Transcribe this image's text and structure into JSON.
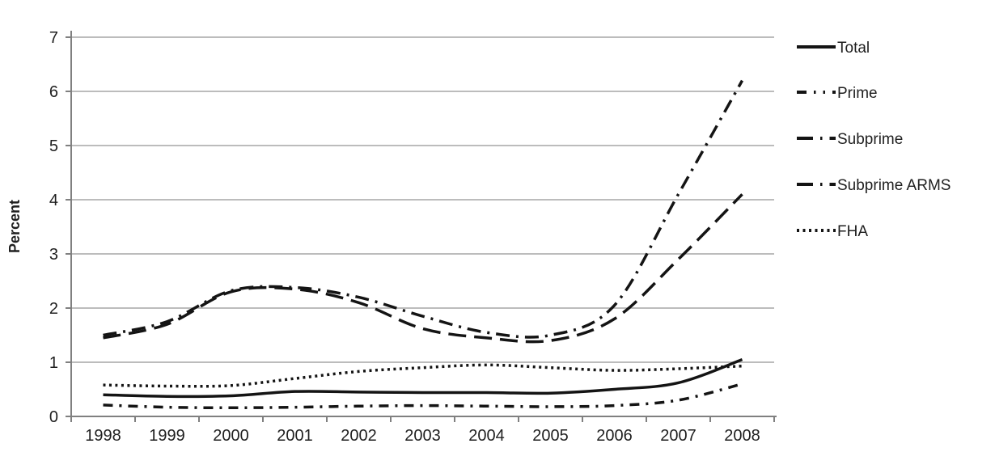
{
  "chart_data": {
    "type": "line",
    "title": "",
    "xlabel": "",
    "ylabel": "Percent",
    "x_categories": [
      "1998",
      "1999",
      "2000",
      "2001",
      "2002",
      "2003",
      "2004",
      "2005",
      "2006",
      "2007",
      "2008"
    ],
    "y_ticks": [
      "0",
      "1",
      "2",
      "3",
      "4",
      "5",
      "6",
      "7"
    ],
    "ylim": [
      0,
      7
    ],
    "grid": "horizontal-gray-lines",
    "legend_position": "right-outside",
    "series": [
      {
        "name": "Total",
        "style": "solid",
        "values": [
          0.4,
          0.37,
          0.38,
          0.46,
          0.45,
          0.44,
          0.44,
          0.43,
          0.5,
          0.62,
          1.05
        ]
      },
      {
        "name": "Prime",
        "style": "dash-dot",
        "values": [
          0.21,
          0.17,
          0.16,
          0.17,
          0.19,
          0.2,
          0.19,
          0.18,
          0.2,
          0.3,
          0.6
        ]
      },
      {
        "name": "Subprime",
        "style": "long-dash",
        "values": [
          1.45,
          1.7,
          2.3,
          2.35,
          2.1,
          1.62,
          1.45,
          1.4,
          1.8,
          2.9,
          4.1
        ]
      },
      {
        "name": "Subprime ARMS",
        "style": "long-dash-dot",
        "values": [
          1.5,
          1.75,
          2.32,
          2.38,
          2.2,
          1.85,
          1.55,
          1.5,
          2.05,
          4.1,
          6.2
        ]
      },
      {
        "name": "FHA",
        "style": "dotted",
        "values": [
          0.58,
          0.56,
          0.57,
          0.7,
          0.83,
          0.9,
          0.95,
          0.9,
          0.85,
          0.88,
          0.93
        ]
      }
    ],
    "colors": {
      "line": "#141414",
      "grid": "#a6a6a6",
      "axis": "#808080",
      "text": "#1f1f1f",
      "background": "#ffffff"
    }
  }
}
